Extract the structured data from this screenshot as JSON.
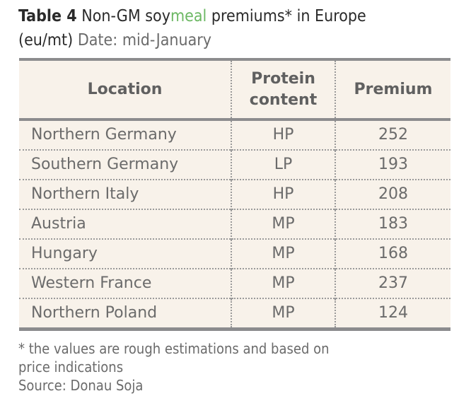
{
  "title": {
    "label": "Table 4",
    "text_before": " Non-GM soy",
    "highlight": "meal",
    "text_after": " premiums* in Europe",
    "unit": "(eu/mt)",
    "date": " Date: mid-January",
    "highlight_color": "#6db864"
  },
  "table": {
    "headers": [
      "Location",
      "Protein content",
      "Premium"
    ],
    "header_lines": {
      "protein_1": "Protein",
      "protein_2": "content"
    },
    "rows": [
      {
        "location": "Northern Germany",
        "protein": "HP",
        "premium": "252"
      },
      {
        "location": "Southern Germany",
        "protein": "LP",
        "premium": "193"
      },
      {
        "location": "Northern Italy",
        "protein": "HP",
        "premium": "208"
      },
      {
        "location": "Austria",
        "protein": "MP",
        "premium": "183"
      },
      {
        "location": "Hungary",
        "protein": "MP",
        "premium": "168"
      },
      {
        "location": "Western France",
        "protein": "MP",
        "premium": "237"
      },
      {
        "location": "Northern Poland",
        "protein": "MP",
        "premium": "124"
      }
    ],
    "colors": {
      "background": "#f8f2ea",
      "rule": "#8c8c8e",
      "text": "#6b6b6b"
    }
  },
  "footnote": {
    "line1": "* the values are rough estimations and based on",
    "line2": "price indications",
    "source": "Source: Donau Soja"
  }
}
